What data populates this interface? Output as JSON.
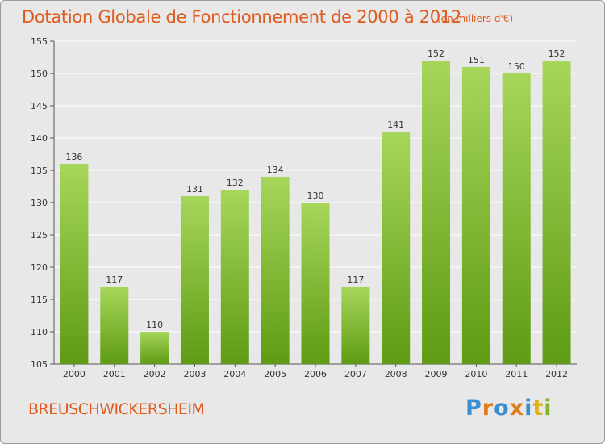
{
  "title": "Dotation Globale de Fonctionnement de 2000 à 2012",
  "subtitle": "(en milliers d'€)",
  "commune": "BREUSCHWICKERSHEIM",
  "logo": {
    "letters": [
      "P",
      "r",
      "o",
      "x",
      "i",
      "t",
      "i"
    ]
  },
  "colors": {
    "title": "#e05a1c",
    "bar_top": "#a6d65a",
    "bar_bottom": "#5f9b14",
    "grid": "#ffffff",
    "background": "#e8e8e8",
    "logo": [
      "#3a8fd0",
      "#e37b1a",
      "#3a8fd0",
      "#e37b1a",
      "#3a8fd0",
      "#e0b11a",
      "#7fb82b"
    ]
  },
  "chart_data": {
    "type": "bar",
    "categories": [
      "2000",
      "2001",
      "2002",
      "2003",
      "2004",
      "2005",
      "2006",
      "2007",
      "2008",
      "2009",
      "2010",
      "2011",
      "2012"
    ],
    "values": [
      136,
      117,
      110,
      131,
      132,
      134,
      130,
      117,
      141,
      152,
      151,
      150,
      152
    ],
    "ylim": [
      105,
      155
    ],
    "yticks": [
      105,
      110,
      115,
      120,
      125,
      130,
      135,
      140,
      145,
      150,
      155
    ],
    "grid": true,
    "data_labels": true
  }
}
